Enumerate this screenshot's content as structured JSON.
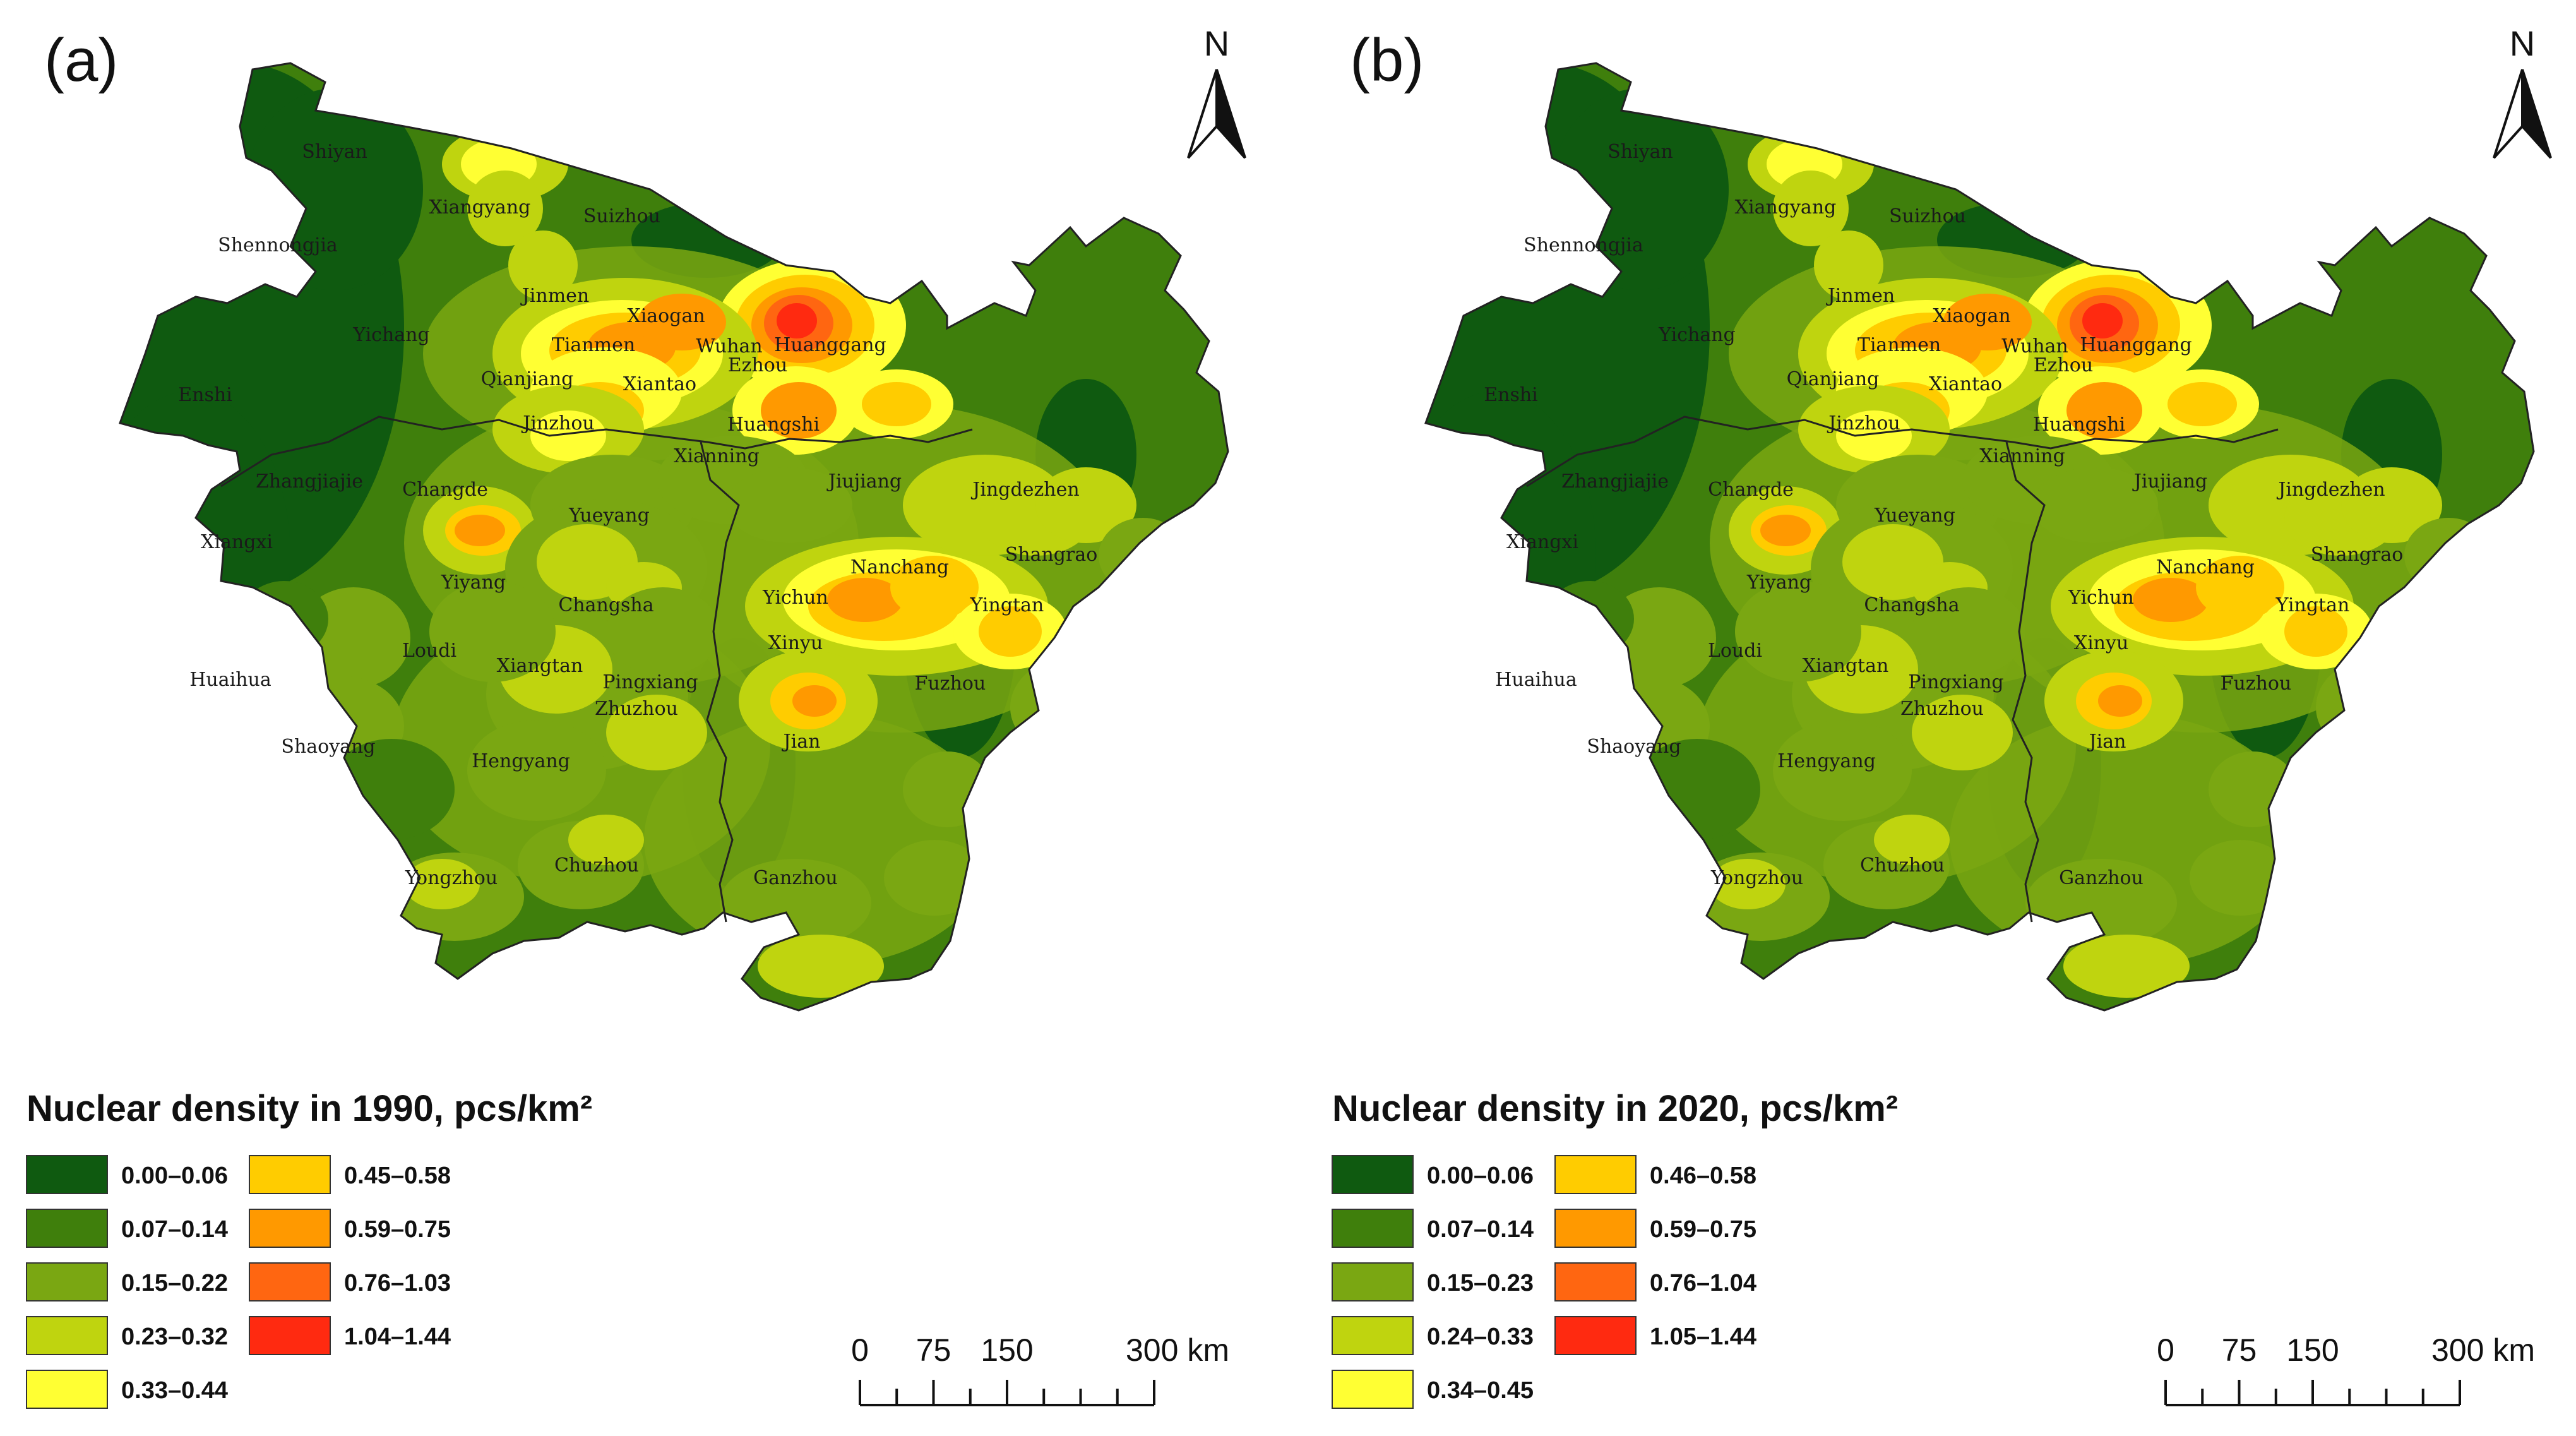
{
  "palette": [
    "#0f5a10",
    "#3f7f0c",
    "#7aa712",
    "#bfd40f",
    "#ffff33",
    "#ffcc00",
    "#ff9900",
    "#ff6611",
    "#ff2a10"
  ],
  "north_label": "N",
  "panels": [
    {
      "label": "(a)",
      "legend_title": "Nuclear density in 1990, pcs/km²",
      "classes": [
        "0.00–0.06",
        "0.07–0.14",
        "0.15–0.22",
        "0.23–0.32",
        "0.33–0.44",
        "0.45–0.58",
        "0.59–0.75",
        "0.76–1.03",
        "1.04–1.44"
      ],
      "scale_ticks": [
        "0",
        "75",
        "150",
        "300 km"
      ],
      "cities": [
        "Shiyan",
        "Xiangyang",
        "Suizhou",
        "Shennongjia",
        "Jinmen",
        "Xiaogan",
        "Yichang",
        "Tianmen",
        "Wuhan",
        "Huanggang",
        "Enshi",
        "Qianjiang",
        "Xiantao",
        "Ezhou",
        "Jinzhou",
        "Huangshi",
        "Xianning",
        "Zhangjiajie",
        "Changde",
        "Jiujiang",
        "Jingdezhen",
        "Yueyang",
        "Xiangxi",
        "Shangrao",
        "Nanchang",
        "Yiyang",
        "Changsha",
        "Yichun",
        "Yingtan",
        "Loudi",
        "Xinyu",
        "Xiangtan",
        "Huaihua",
        "Pingxiang",
        "Fuzhou",
        "Zhuzhou",
        "Jian",
        "Shaoyang",
        "Hengyang",
        "Chuzhou",
        "Yongzhou",
        "Ganzhou"
      ]
    },
    {
      "label": "(b)",
      "legend_title": "Nuclear density in 2020, pcs/km²",
      "classes": [
        "0.00–0.06",
        "0.07–0.14",
        "0.15–0.23",
        "0.24–0.33",
        "0.34–0.45",
        "0.46–0.58",
        "0.59–0.75",
        "0.76–1.04",
        "1.05–1.44"
      ],
      "scale_ticks": [
        "0",
        "75",
        "150",
        "300 km"
      ],
      "cities": [
        "Shiyan",
        "Xiangyang",
        "Suizhou",
        "Shennongjia",
        "Jinmen",
        "Xiaogan",
        "Yichang",
        "Tianmen",
        "Wuhan",
        "Huanggang",
        "Enshi",
        "Qianjiang",
        "Xiantao",
        "Ezhou",
        "Jinzhou",
        "Huangshi",
        "Xianning",
        "Zhangjiajie",
        "Changde",
        "Jiujiang",
        "Jingdezhen",
        "Yueyang",
        "Xiangxi",
        "Shangrao",
        "Nanchang",
        "Yiyang",
        "Changsha",
        "Yichun",
        "Yingtan",
        "Loudi",
        "Xinyu",
        "Xiangtan",
        "Huaihua",
        "Pingxiang",
        "Fuzhou",
        "Zhuzhou",
        "Jian",
        "Shaoyang",
        "Hengyang",
        "Chuzhou",
        "Yongzhou",
        "Ganzhou"
      ]
    }
  ]
}
